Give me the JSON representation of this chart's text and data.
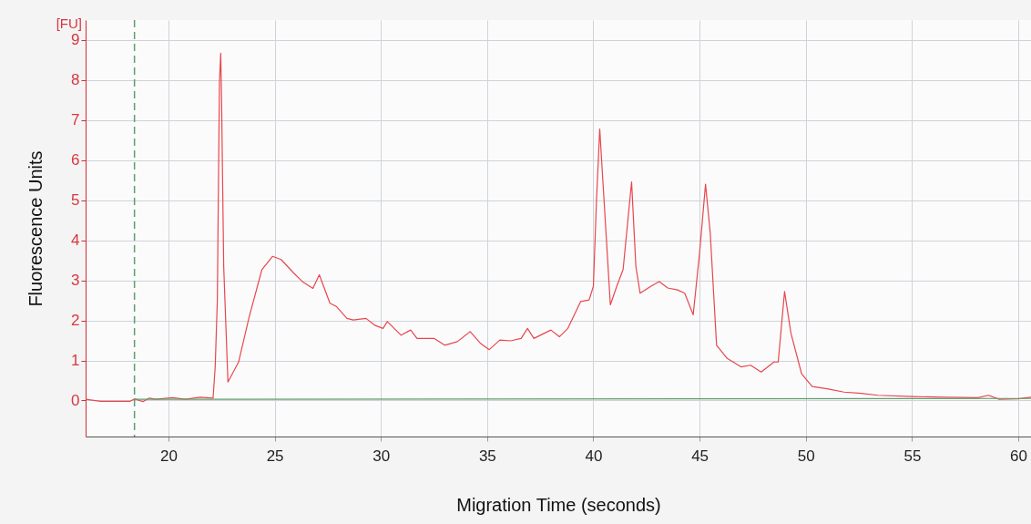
{
  "chart_data": {
    "type": "line",
    "xlabel": "Migration Time (seconds)",
    "ylabel": "Fluorescence Units",
    "annotations": [
      "[FU]"
    ],
    "xlim": [
      16.1,
      60.6
    ],
    "ylim": [
      -0.9,
      9.5
    ],
    "xticks": [
      20,
      25,
      30,
      35,
      40,
      45,
      50,
      55,
      60
    ],
    "yticks": [
      0,
      1,
      2,
      3,
      4,
      5,
      6,
      7,
      8,
      9
    ],
    "grid": true,
    "line_style": "solid",
    "ref_lines": [
      {
        "axis": "x",
        "value": 18.4,
        "label": null,
        "color": "#5f9e6e",
        "line_style": "dashed"
      }
    ],
    "series": [
      {
        "color": "#e8474c",
        "x": [
          16.1,
          16.8,
          18.2,
          18.4,
          18.8,
          19.1,
          19.4,
          20.2,
          20.8,
          21.5,
          22.1,
          22.2,
          22.3,
          22.4,
          22.46,
          22.5,
          22.6,
          22.8,
          23.3,
          23.8,
          24.4,
          24.9,
          25.3,
          25.9,
          26.3,
          26.8,
          27.1,
          27.6,
          27.9,
          28.4,
          28.7,
          29.3,
          29.7,
          30.1,
          30.3,
          30.95,
          31.4,
          31.7,
          32.5,
          33.0,
          33.6,
          34.2,
          34.7,
          35.1,
          35.6,
          36.1,
          36.6,
          36.9,
          37.2,
          37.7,
          38.0,
          38.4,
          38.8,
          39.4,
          39.8,
          40.0,
          40.15,
          40.3,
          40.5,
          40.8,
          41.1,
          41.4,
          41.8,
          42.0,
          42.2,
          42.7,
          43.1,
          43.5,
          43.96,
          44.3,
          44.7,
          45.0,
          45.28,
          45.5,
          45.8,
          46.3,
          46.95,
          47.4,
          47.9,
          48.5,
          48.7,
          49.0,
          49.3,
          49.8,
          50.3,
          51.0,
          51.8,
          52.6,
          53.4,
          55.0,
          56.5,
          58.1,
          58.6,
          59.1,
          60.0,
          60.6
        ],
        "values": [
          0.03,
          -0.02,
          -0.02,
          0.04,
          -0.03,
          0.06,
          0.03,
          0.07,
          0.03,
          0.08,
          0.06,
          0.84,
          2.5,
          7.95,
          8.67,
          7.5,
          3.35,
          0.46,
          0.96,
          2.09,
          3.27,
          3.6,
          3.52,
          3.18,
          2.97,
          2.8,
          3.14,
          2.43,
          2.35,
          2.05,
          2.01,
          2.05,
          1.88,
          1.8,
          1.97,
          1.63,
          1.76,
          1.55,
          1.55,
          1.38,
          1.47,
          1.72,
          1.42,
          1.27,
          1.51,
          1.49,
          1.55,
          1.8,
          1.55,
          1.68,
          1.76,
          1.59,
          1.8,
          2.47,
          2.51,
          2.85,
          5.03,
          6.78,
          5.03,
          2.39,
          2.85,
          3.27,
          5.46,
          3.35,
          2.68,
          2.85,
          2.97,
          2.81,
          2.76,
          2.68,
          2.14,
          3.69,
          5.4,
          4.19,
          1.38,
          1.05,
          0.84,
          0.88,
          0.71,
          0.96,
          0.96,
          2.72,
          1.68,
          0.67,
          0.35,
          0.29,
          0.21,
          0.18,
          0.13,
          0.1,
          0.08,
          0.07,
          0.13,
          0.03,
          0.04,
          0.08
        ]
      },
      {
        "color": "#5f9e6e",
        "x": [
          18.4,
          60.6
        ],
        "values": [
          0.03,
          0.05
        ]
      }
    ]
  }
}
